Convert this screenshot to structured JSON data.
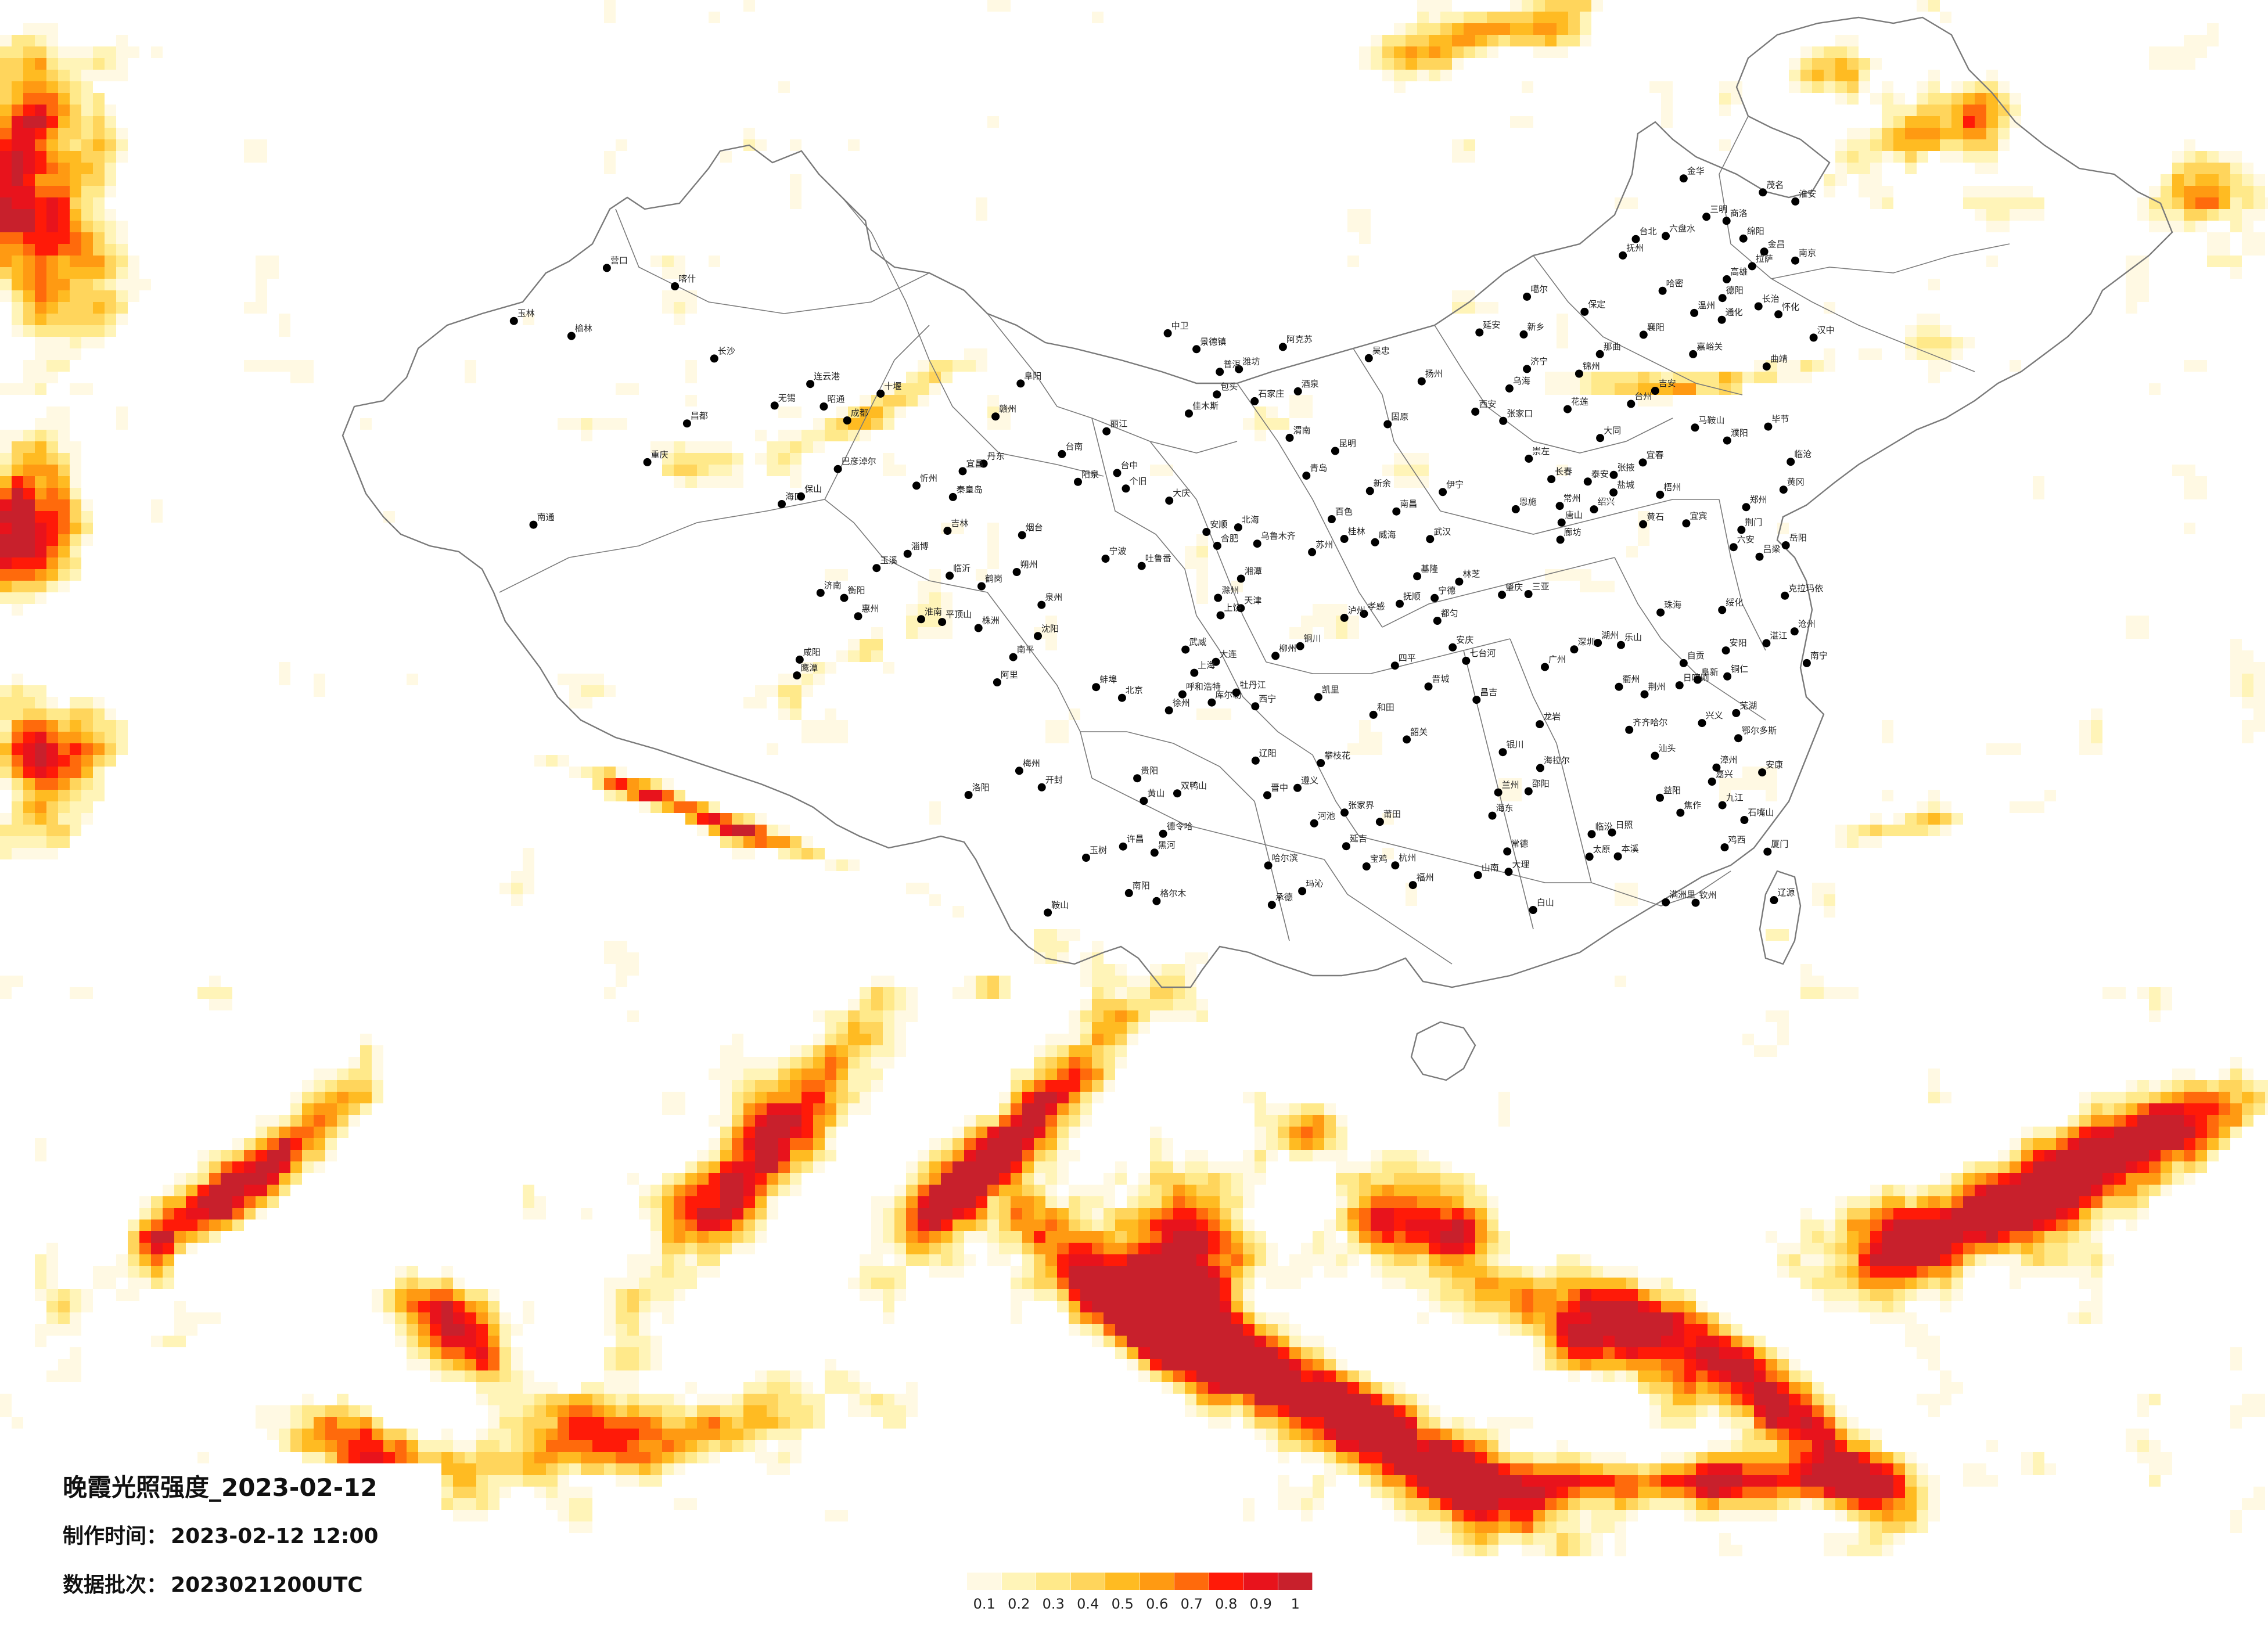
{
  "title": "晚霞光照强度_2023-02-12",
  "made_time": {
    "label": "制作时间：",
    "value": "2023-02-12 12:00"
  },
  "data_batch": {
    "label": "数据批次：",
    "value": "2023021200UTC"
  },
  "legend": {
    "ticks": [
      "0.1",
      "0.2",
      "0.3",
      "0.4",
      "0.5",
      "0.6",
      "0.7",
      "0.8",
      "0.9",
      "1"
    ],
    "colors": [
      "#fff9e3",
      "#fff4b8",
      "#ffe98a",
      "#ffd55c",
      "#ffbb22",
      "#ff9a12",
      "#ff6a0c",
      "#ff1a08",
      "#e8131c",
      "#c8202c"
    ]
  },
  "map": {
    "border_color": "#7a7a7a",
    "background": "#ffffff",
    "cities": [
      "克拉玛依",
      "伊宁",
      "昌吉",
      "乌鲁木齐",
      "吐鲁番",
      "哈密",
      "库尔勒",
      "阿克苏",
      "喀什",
      "和田",
      "噶尔",
      "德令哈",
      "嘉峪关",
      "酒泉",
      "金昌",
      "张掖",
      "武威",
      "西宁",
      "海东",
      "兰州",
      "格尔木",
      "玛沁",
      "玉树",
      "日喀则",
      "拉萨",
      "山南",
      "林芝",
      "昌都",
      "那曲",
      "阿里",
      "呼和浩特",
      "包头",
      "鄂尔多斯",
      "乌海",
      "巴彦淖尔",
      "银川",
      "石嘴山",
      "吴忠",
      "中卫",
      "固原",
      "海拉尔",
      "满洲里",
      "齐齐哈尔",
      "大庆",
      "哈尔滨",
      "绥化",
      "黑河",
      "鹤岗",
      "佳木斯",
      "双鸭山",
      "七台河",
      "鸡西",
      "牡丹江",
      "长春",
      "吉林",
      "四平",
      "辽源",
      "通化",
      "白山",
      "延吉",
      "沈阳",
      "大连",
      "鞍山",
      "抚顺",
      "本溪",
      "丹东",
      "锦州",
      "营口",
      "阜新",
      "辽阳",
      "北京",
      "天津",
      "石家庄",
      "唐山",
      "秦皇岛",
      "保定",
      "张家口",
      "承德",
      "沧州",
      "廊坊",
      "太原",
      "大同",
      "阳泉",
      "长治",
      "晋城",
      "朔州",
      "忻州",
      "吕梁",
      "晋中",
      "临汾",
      "济南",
      "青岛",
      "淄博",
      "烟台",
      "潍坊",
      "济宁",
      "泰安",
      "威海",
      "日照",
      "临沂",
      "郑州",
      "开封",
      "洛阳",
      "平顶山",
      "安阳",
      "新乡",
      "焦作",
      "濮阳",
      "许昌",
      "南阳",
      "西安",
      "铜川",
      "宝鸡",
      "咸阳",
      "渭南",
      "延安",
      "汉中",
      "榆林",
      "安康",
      "商洛",
      "南京",
      "无锡",
      "徐州",
      "常州",
      "苏州",
      "南通",
      "连云港",
      "淮安",
      "盐城",
      "扬州",
      "上海",
      "杭州",
      "宁波",
      "温州",
      "嘉兴",
      "湖州",
      "绍兴",
      "金华",
      "衢州",
      "台州",
      "合肥",
      "芜湖",
      "蚌埠",
      "淮南",
      "马鞍山",
      "安庆",
      "黄山",
      "滁州",
      "阜阳",
      "六安",
      "福州",
      "厦门",
      "莆田",
      "三明",
      "泉州",
      "漳州",
      "南平",
      "龙岩",
      "宁德",
      "台北",
      "南昌",
      "景德镇",
      "九江",
      "新余",
      "鹰潭",
      "赣州",
      "吉安",
      "宜春",
      "抚州",
      "上饶",
      "武汉",
      "黄石",
      "十堰",
      "宜昌",
      "襄阳",
      "荆门",
      "孝感",
      "荆州",
      "黄冈",
      "恩施",
      "长沙",
      "株洲",
      "湘潭",
      "衡阳",
      "邵阳",
      "岳阳",
      "常德",
      "张家界",
      "益阳",
      "怀化",
      "广州",
      "深圳",
      "珠海",
      "汕头",
      "韶关",
      "湛江",
      "茂名",
      "肇庆",
      "惠州",
      "梅州",
      "南宁",
      "柳州",
      "桂林",
      "梧州",
      "北海",
      "钦州",
      "玉林",
      "百色",
      "河池",
      "崇左",
      "海口",
      "三亚",
      "成都",
      "自贡",
      "攀枝花",
      "泸州",
      "德阳",
      "绵阳",
      "乐山",
      "宜宾",
      "重庆",
      "贵阳",
      "遵义",
      "六盘水",
      "安顺",
      "毕节",
      "铜仁",
      "都匀",
      "凯里",
      "兴义",
      "昆明",
      "曲靖",
      "玉溪",
      "保山",
      "昭通",
      "丽江",
      "普洱",
      "临沧",
      "大理",
      "个旧",
      "台中",
      "台南",
      "高雄",
      "花莲",
      "基隆"
    ]
  }
}
